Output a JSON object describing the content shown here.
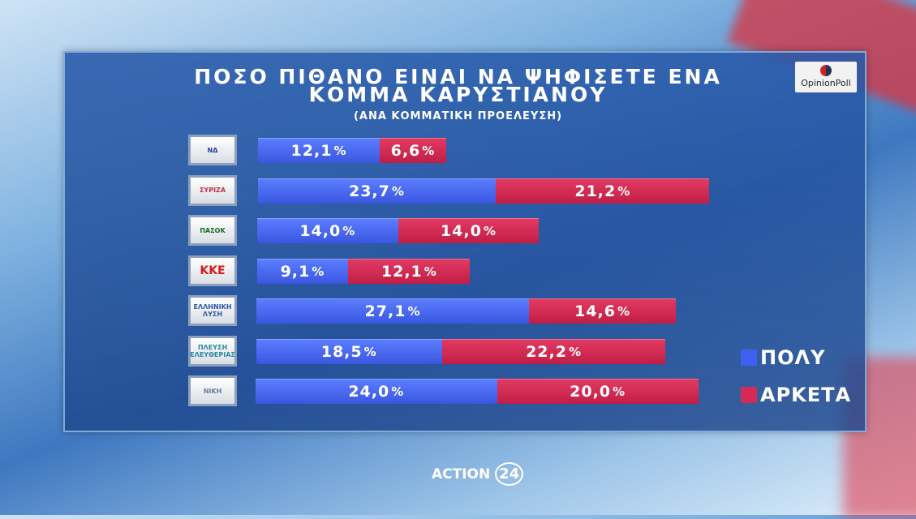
{
  "chart_data": {
    "type": "bar",
    "stacked": true,
    "orientation": "horizontal",
    "title": "ΠΟΣΟ ΠΙΘΑΝΟ ΕΙΝΑΙ ΝΑ ΨΗΦΙΣΕΤΕ ΕΝΑ ΚΟΜΜΑ ΚΑΡΥΣΤΙΑΝΟΥ",
    "subtitle": "(ΑΝΑ ΚΟΜΜΑΤΙΚΗ ΠΡΟΕΛΕΥΣΗ)",
    "categories": [
      "ΝΔ",
      "ΣΥΡΙΖΑ",
      "ΠΑΣΟΚ",
      "ΚΚΕ",
      "ΕΛΛΗΝΙΚΗ ΛΥΣΗ",
      "ΠΛΕΥΣΗ ΕΛΕΥΘΕΡΙΑΣ",
      "ΝΙΚΗ"
    ],
    "series": [
      {
        "name": "ΠΟΛΥ",
        "color": "#3f5fef",
        "values": [
          12.1,
          23.7,
          14.0,
          9.1,
          27.1,
          18.5,
          24.0
        ],
        "labels": [
          "12,1",
          "23,7",
          "14,0",
          "9,1",
          "27,1",
          "18,5",
          "24,0"
        ]
      },
      {
        "name": "ΑΡΚΕΤΑ",
        "color": "#d42a55",
        "values": [
          6.6,
          21.2,
          14.0,
          12.1,
          14.6,
          22.2,
          20.0
        ],
        "labels": [
          "6,6",
          "21,2",
          "14,0",
          "12,1",
          "14,6",
          "22,2",
          "20,0"
        ]
      }
    ],
    "unit": "%",
    "legend": "right",
    "grid": false
  },
  "branding": {
    "pollster": "OpinionPoll",
    "channel": "ACTION 24"
  }
}
